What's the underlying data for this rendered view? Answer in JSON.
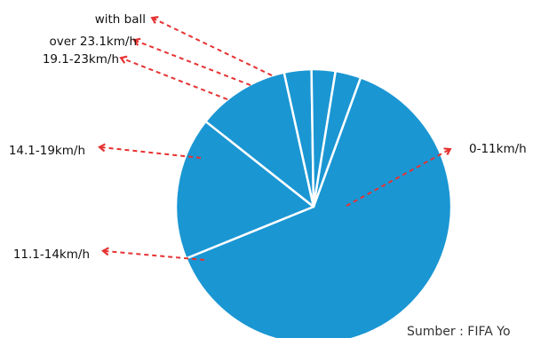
{
  "chart_data": {
    "type": "pie",
    "categories": [
      "0-11km/h",
      "11.1-14km/h",
      "14.1-19km/h",
      "19.1-23km/h",
      "over 23.1km/h",
      "with ball"
    ],
    "values": [
      63.3,
      16.8,
      10.9,
      3.2,
      2.8,
      3.0
    ],
    "unit": "%",
    "source": "Sumber : FIFA Yo",
    "colors": {
      "slice": "#1a96d3",
      "separator": "#ffffff",
      "leader": "#e63232",
      "text": "#111111"
    }
  }
}
